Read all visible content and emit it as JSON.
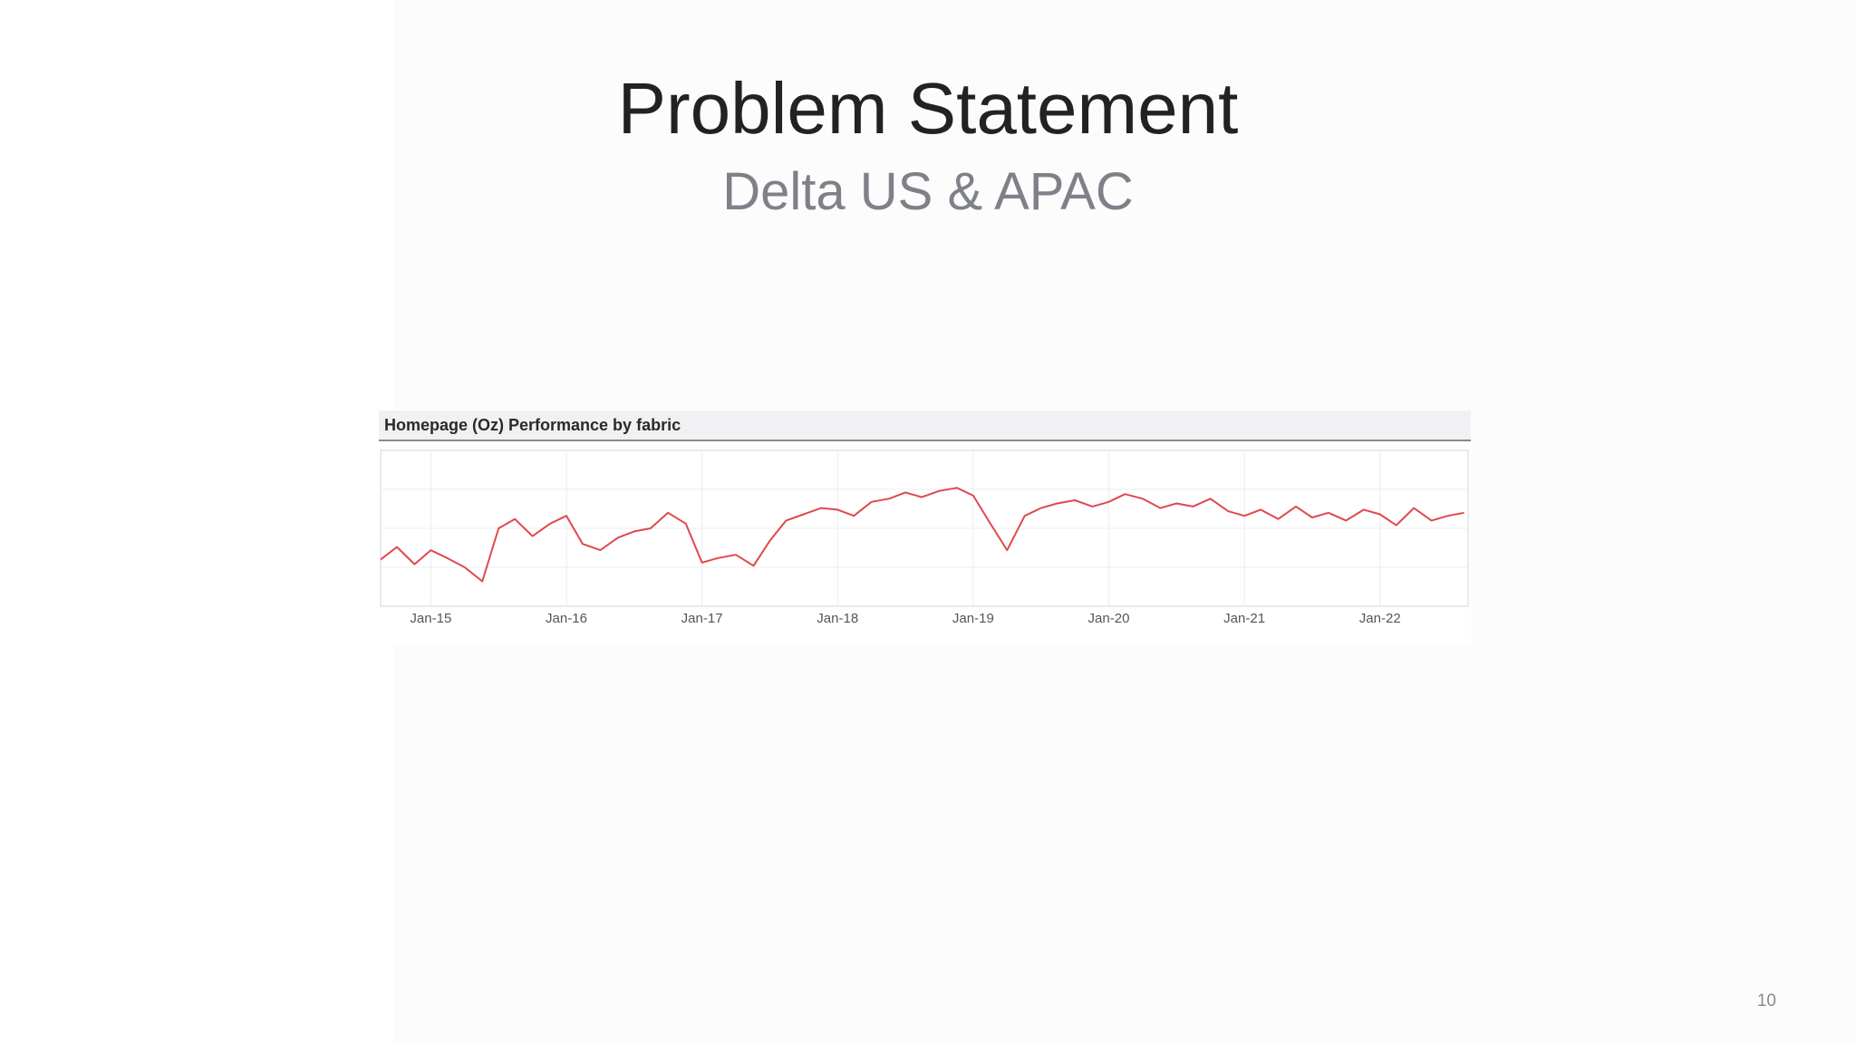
{
  "slide": {
    "title": "Problem Statement",
    "subtitle": "Delta US & APAC",
    "page_number": "10"
  },
  "chart_data": {
    "type": "line",
    "title": "Homepage (Oz) Performance by fabric",
    "xlabel": "",
    "ylabel": "",
    "x_tick_labels": [
      "Jan-15",
      "Jan-16",
      "Jan-17",
      "Jan-18",
      "Jan-19",
      "Jan-20",
      "Jan-21",
      "Jan-22"
    ],
    "x_ticks": [
      2015.0,
      2016.0,
      2017.0,
      2018.0,
      2019.0,
      2020.0,
      2021.0,
      2022.0
    ],
    "xlim": [
      2014.63,
      2022.65
    ],
    "ylim": [
      0,
      1
    ],
    "y_ticks_shown": false,
    "grid": true,
    "legend": "none",
    "line_color": "#e0484f",
    "series": [
      {
        "x": [
          2014.63,
          2014.75,
          2014.88,
          2015.0,
          2015.12,
          2015.25,
          2015.38,
          2015.5,
          2015.62,
          2015.75,
          2015.88,
          2016.0,
          2016.12,
          2016.25,
          2016.38,
          2016.5,
          2016.62,
          2016.75,
          2016.88,
          2017.0,
          2017.12,
          2017.25,
          2017.38,
          2017.5,
          2017.62,
          2017.75,
          2017.88,
          2018.0,
          2018.12,
          2018.25,
          2018.38,
          2018.5,
          2018.62,
          2018.75,
          2018.88,
          2019.0,
          2019.12,
          2019.25,
          2019.38,
          2019.5,
          2019.62,
          2019.75,
          2019.88,
          2020.0,
          2020.12,
          2020.25,
          2020.38,
          2020.5,
          2020.62,
          2020.75,
          2020.88,
          2021.0,
          2021.12,
          2021.25,
          2021.38,
          2021.5,
          2021.62,
          2021.75,
          2021.88,
          2022.0,
          2022.12,
          2022.25,
          2022.38,
          2022.5,
          2022.62
        ],
        "values": [
          0.3,
          0.38,
          0.27,
          0.36,
          0.31,
          0.25,
          0.16,
          0.5,
          0.56,
          0.45,
          0.53,
          0.58,
          0.4,
          0.36,
          0.44,
          0.48,
          0.5,
          0.6,
          0.53,
          0.28,
          0.31,
          0.33,
          0.26,
          0.42,
          0.55,
          0.59,
          0.63,
          0.62,
          0.58,
          0.67,
          0.69,
          0.73,
          0.7,
          0.74,
          0.76,
          0.71,
          0.54,
          0.36,
          0.58,
          0.63,
          0.66,
          0.68,
          0.64,
          0.67,
          0.72,
          0.69,
          0.63,
          0.66,
          0.64,
          0.69,
          0.61,
          0.58,
          0.62,
          0.56,
          0.64,
          0.57,
          0.6,
          0.55,
          0.62,
          0.59,
          0.52,
          0.63,
          0.55,
          0.58,
          0.6
        ]
      }
    ]
  }
}
